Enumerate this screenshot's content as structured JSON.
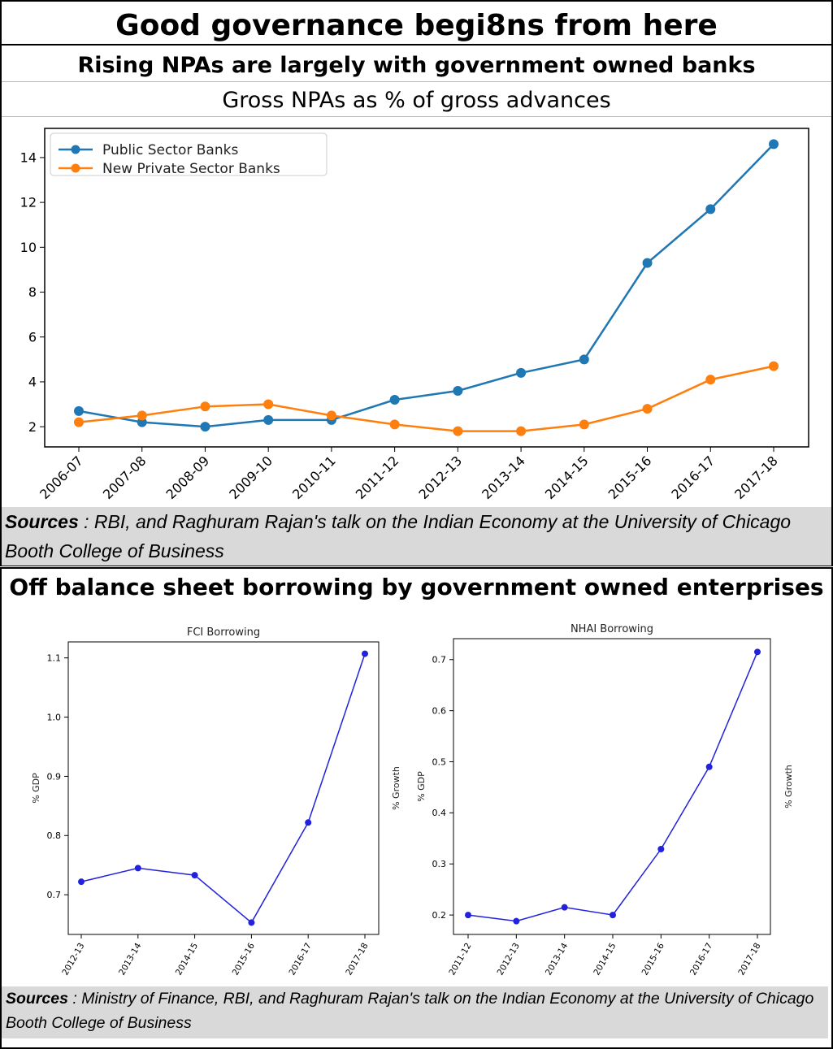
{
  "header": {
    "title": "Good governance begi8ns from here"
  },
  "section1": {
    "title": "Rising NPAs are largely with government owned banks",
    "subtitle": "Gross NPAs as % of gross advances",
    "source_label": "Sources",
    "source_text": " : RBI, and Raghuram Rajan's talk on the Indian Economy at the University of Chicago Booth College of Business"
  },
  "section2": {
    "title": "Off balance sheet borrowing by government owned enterprises",
    "source_label": "Sources",
    "source_text": " : Ministry of Finance, RBI, and Raghuram Rajan's talk on the Indian Economy at the University of Chicago Booth College of Business"
  },
  "colors": {
    "public": "#1f77b4",
    "private": "#ff7f0e",
    "blue_line": "#2222dd"
  },
  "chart_data": [
    {
      "type": "line",
      "title": "",
      "categories": [
        "2006-07",
        "2007-08",
        "2008-09",
        "2009-10",
        "2010-11",
        "2011-12",
        "2012-13",
        "2013-14",
        "2014-15",
        "2015-16",
        "2016-17",
        "2017-18"
      ],
      "series": [
        {
          "name": "Public Sector Banks",
          "values": [
            2.7,
            2.2,
            2.0,
            2.3,
            2.3,
            3.2,
            3.6,
            4.4,
            5.0,
            9.3,
            11.7,
            14.6
          ]
        },
        {
          "name": "New Private Sector Banks",
          "values": [
            2.2,
            2.5,
            2.9,
            3.0,
            2.5,
            2.1,
            1.8,
            1.8,
            2.1,
            2.8,
            4.1,
            4.7
          ]
        }
      ],
      "yticks": [
        2,
        4,
        6,
        8,
        10,
        12,
        14
      ],
      "ylim": [
        1.1,
        15.3
      ],
      "legend": "top-left",
      "grid": false
    },
    {
      "type": "line",
      "title": "FCI Borrowing",
      "categories": [
        "2012-13",
        "2013-14",
        "2014-15",
        "2015-16",
        "2016-17",
        "2017-18"
      ],
      "values": [
        0.722,
        0.745,
        0.733,
        0.653,
        0.822,
        1.107
      ],
      "ylabel": "% GDP",
      "y2label": "% Growth",
      "yticks": [
        0.7,
        0.8,
        0.9,
        1.0,
        1.1
      ],
      "ylim": [
        0.633,
        1.127
      ],
      "grid": false
    },
    {
      "type": "line",
      "title": "NHAI Borrowing",
      "categories": [
        "2011-12",
        "2012-13",
        "2013-14",
        "2014-15",
        "2015-16",
        "2016-17",
        "2017-18"
      ],
      "values": [
        0.2,
        0.188,
        0.215,
        0.2,
        0.329,
        0.49,
        0.715
      ],
      "ylabel": "% GDP",
      "y2label": "% Growth",
      "yticks": [
        0.2,
        0.3,
        0.4,
        0.5,
        0.6,
        0.7
      ],
      "ylim": [
        0.162,
        0.741
      ],
      "grid": false
    }
  ]
}
